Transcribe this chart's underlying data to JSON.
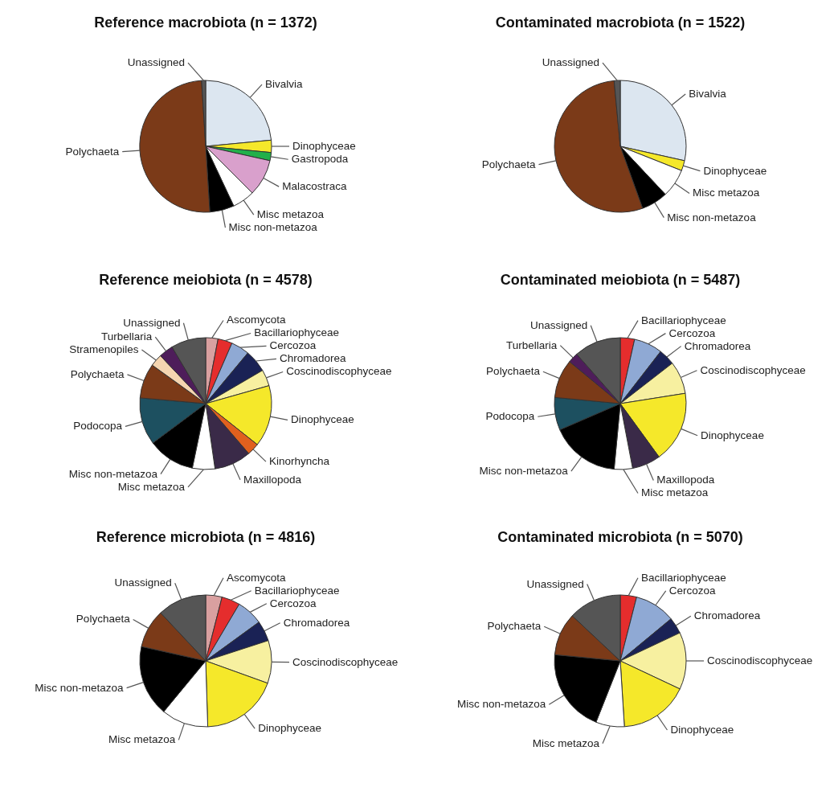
{
  "chart_data": [
    {
      "type": "pie",
      "title": "Reference macrobiota (n = 1372)",
      "categories": [
        "Bivalvia",
        "Dinophyceae",
        "Gastropoda",
        "Malacostraca",
        "Misc metazoa",
        "Misc non-metazoa",
        "Polychaeta",
        "Unassigned"
      ],
      "values": [
        23.5,
        3,
        2,
        9,
        5.5,
        6,
        50,
        1
      ],
      "colors": [
        "#dce6f0",
        "#f5e82a",
        "#22b04a",
        "#d9a0cc",
        "#ffffff",
        "#000000",
        "#7b3a18",
        "#555555"
      ]
    },
    {
      "type": "pie",
      "title": "Contaminated macrobiota (n = 1522)",
      "categories": [
        "Bivalvia",
        "Dinophyceae",
        "Misc metazoa",
        "Misc non-metazoa",
        "Polychaeta",
        "Unassigned"
      ],
      "values": [
        28.5,
        2.5,
        7,
        6.5,
        54,
        1.5
      ],
      "colors": [
        "#dce6f0",
        "#f5e82a",
        "#ffffff",
        "#000000",
        "#7b3a18",
        "#555555"
      ]
    },
    {
      "type": "pie",
      "title": "Reference meiobiota (n = 4578)",
      "categories": [
        "Ascomycota",
        "Bacillariophyceae",
        "Cercozoa",
        "Chromadorea",
        "Coscinodiscophyceae",
        "Dinophyceae",
        "Kinorhyncha",
        "Maxillopoda",
        "Misc metazoa",
        "Misc non-metazoa",
        "Podocopa",
        "Polychaeta",
        "Stramenopiles",
        "Turbellaria",
        "Unassigned"
      ],
      "values": [
        3,
        3.5,
        4.5,
        5.5,
        4,
        15,
        3,
        9,
        5.5,
        11.5,
        11.5,
        8.5,
        3,
        3.5,
        8.5
      ],
      "colors": [
        "#d9a0a0",
        "#e52d2d",
        "#8fa9d4",
        "#1a2255",
        "#f7f0a0",
        "#f5e82a",
        "#e0601e",
        "#3a2a48",
        "#ffffff",
        "#000000",
        "#1d5060",
        "#7b3a18",
        "#f5d5b0",
        "#4e1d5a",
        "#555555"
      ]
    },
    {
      "type": "pie",
      "title": "Contaminated meiobiota (n = 5487)",
      "categories": [
        "Bacillariophyceae",
        "Cercozoa",
        "Chromadorea",
        "Coscinodiscophyceae",
        "Dinophyceae",
        "Maxillopoda",
        "Misc metazoa",
        "Misc non-metazoa",
        "Podocopa",
        "Polychaeta",
        "Turbellaria",
        "Unassigned"
      ],
      "values": [
        3.5,
        7,
        4,
        8,
        17.5,
        7,
        4.5,
        17,
        8,
        9.5,
        2.5,
        11.5
      ],
      "colors": [
        "#e52d2d",
        "#8fa9d4",
        "#1a2255",
        "#f7f0a0",
        "#f5e82a",
        "#3a2a48",
        "#ffffff",
        "#000000",
        "#1d5060",
        "#7b3a18",
        "#4e1d5a",
        "#555555"
      ]
    },
    {
      "type": "pie",
      "title": "Reference microbiota (n = 4816)",
      "categories": [
        "Ascomycota",
        "Bacillariophyceae",
        "Cercozoa",
        "Chromadorea",
        "Coscinodiscophyceae",
        "Dinophyceae",
        "Misc metazoa",
        "Misc non-metazoa",
        "Polychaeta",
        "Unassigned"
      ],
      "values": [
        4,
        4.5,
        6.5,
        5,
        10.5,
        19,
        11.5,
        17.5,
        9.5,
        12
      ],
      "colors": [
        "#d9a0a0",
        "#e52d2d",
        "#8fa9d4",
        "#1a2255",
        "#f7f0a0",
        "#f5e82a",
        "#ffffff",
        "#000000",
        "#7b3a18",
        "#555555"
      ]
    },
    {
      "type": "pie",
      "title": "Contaminated microbiota (n = 5070)",
      "categories": [
        "Bacillariophyceae",
        "Cercozoa",
        "Chromadorea",
        "Coscinodiscophyceae",
        "Dinophyceae",
        "Misc metazoa",
        "Misc non-metazoa",
        "Polychaeta",
        "Unassigned"
      ],
      "values": [
        4,
        10,
        4,
        14,
        17,
        7,
        20.5,
        10.5,
        13
      ],
      "colors": [
        "#e52d2d",
        "#8fa9d4",
        "#1a2255",
        "#f7f0a0",
        "#f5e82a",
        "#ffffff",
        "#000000",
        "#7b3a18",
        "#555555"
      ]
    }
  ]
}
